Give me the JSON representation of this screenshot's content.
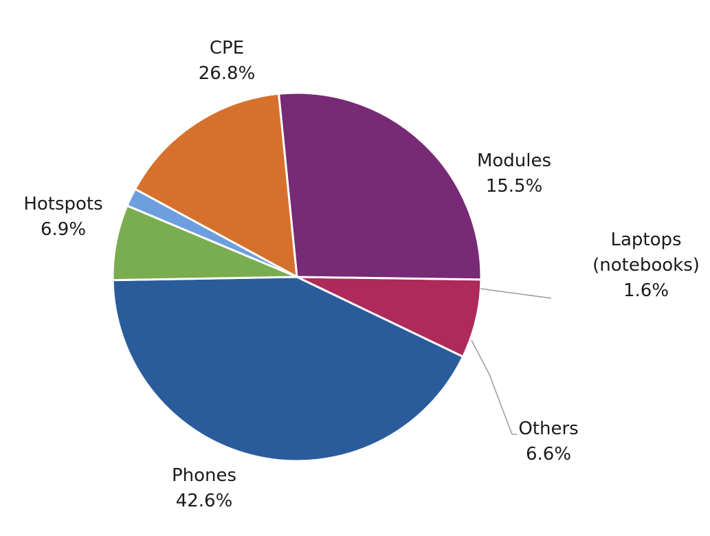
{
  "chart_data": {
    "type": "pie",
    "title": "",
    "slices": [
      {
        "name": "Phones",
        "line2": "",
        "label": "Phones",
        "value_label": "42.6%",
        "value": 42.6,
        "color": "#2a5c9c"
      },
      {
        "name": "Hotspots",
        "line2": "",
        "label": "Hotspots",
        "value_label": "6.9%",
        "value": 6.9,
        "color": "#ae2a5a"
      },
      {
        "name": "CPE",
        "line2": "",
        "label": "CPE",
        "value_label": "26.8%",
        "value": 26.8,
        "color": "#772a75"
      },
      {
        "name": "Modules",
        "line2": "",
        "label": "Modules",
        "value_label": "15.5%",
        "value": 15.5,
        "color": "#d5712d"
      },
      {
        "name": "Laptops",
        "line2": "(notebooks)",
        "label": "Laptops",
        "value_label": "1.6%",
        "value": 1.6,
        "color": "#6d9ede"
      },
      {
        "name": "Others",
        "line2": "",
        "label": "Others",
        "value_label": "6.6%",
        "value": 6.6,
        "color": "#7aad4f"
      }
    ],
    "legend": "none",
    "labels_position": "outside",
    "start_angle_deg": 181,
    "direction": "counterclockwise"
  }
}
